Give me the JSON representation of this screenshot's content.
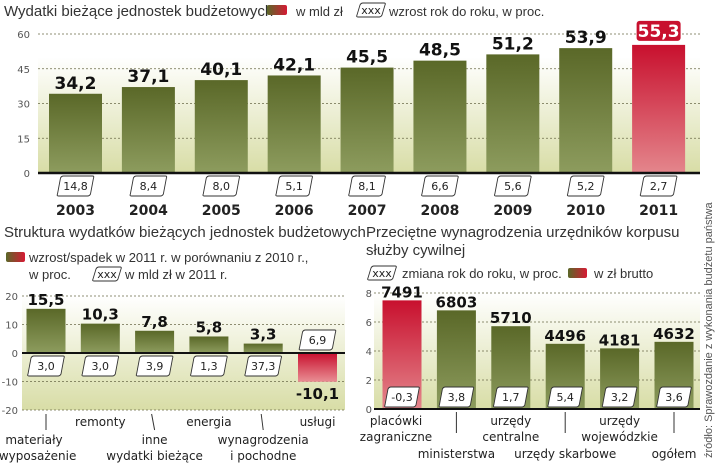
{
  "colors": {
    "bar_green_top": "#5c6b2a",
    "bar_green_bottom": "#8a9a5a",
    "bar_red_top": "#c8102e",
    "bar_red_bottom": "#e58a8f",
    "plot_bg_top": "#ffffff",
    "plot_bg_bottom": "#dfe3b5",
    "grid": "#6b6b4a",
    "axis": "#111111"
  },
  "source": "źródło: Sprawozdanie z wykonania budżetu państwa",
  "chart_data": [
    {
      "id": "top",
      "type": "bar",
      "title": "Wydatki bieżące jednostek budżetowych",
      "legend": [
        {
          "kind": "swatch",
          "label": "w mld zł"
        },
        {
          "kind": "box",
          "box_text": "xxx",
          "label": "wzrost rok do roku, w proc."
        }
      ],
      "categories": [
        "2003",
        "2004",
        "2005",
        "2006",
        "2007",
        "2008",
        "2009",
        "2010",
        "2011"
      ],
      "values": [
        34.2,
        37.1,
        40.1,
        42.1,
        45.5,
        48.5,
        51.2,
        53.9,
        55.3
      ],
      "value_labels": [
        "34,2",
        "37,1",
        "40,1",
        "42,1",
        "45,5",
        "48,5",
        "51,2",
        "53,9",
        "55,3"
      ],
      "growth_labels": [
        "14,8",
        "8,4",
        "8,0",
        "5,1",
        "8,1",
        "6,6",
        "5,6",
        "5,2",
        "2,7"
      ],
      "highlight": [
        false,
        false,
        false,
        false,
        false,
        false,
        false,
        false,
        true
      ],
      "yticks": [
        0,
        15,
        30,
        45,
        60
      ],
      "ylim": [
        0,
        60
      ],
      "grid": true,
      "xlabel": "",
      "ylabel": ""
    },
    {
      "id": "bottom-left",
      "type": "bar",
      "title": "Struktura wydatków bieżących jednostek budżetowych",
      "legend": [
        {
          "kind": "swatch",
          "label": "wzrost/spadek w 2011 r. w porównaniu z 2010 r.,"
        },
        {
          "kind": "text",
          "label": "w proc."
        },
        {
          "kind": "box",
          "box_text": "xxx",
          "label": "w mld zł w 2011 r."
        }
      ],
      "categories": [
        "materiały i wyposażenie",
        "remonty",
        "inne wydatki bieżące",
        "energia",
        "wynagrodzenia i pochodne",
        "usługi"
      ],
      "category_lines": [
        [
          "materiały",
          "i wyposażenie"
        ],
        [
          "remonty"
        ],
        [
          "inne",
          "wydatki bieżące"
        ],
        [
          "energia"
        ],
        [
          "wynagrodzenia",
          "i pochodne"
        ],
        [
          "usługi"
        ]
      ],
      "values": [
        15.5,
        10.3,
        7.8,
        5.8,
        3.3,
        -10.1
      ],
      "value_labels": [
        "15,5",
        "10,3",
        "7,8",
        "5,8",
        "3,3",
        "-10,1"
      ],
      "box_labels": [
        "3,0",
        "3,0",
        "3,9",
        "1,3",
        "37,3",
        "6,9"
      ],
      "highlight": [
        false,
        false,
        false,
        false,
        false,
        true
      ],
      "yticks": [
        -20,
        -10,
        0,
        10,
        20
      ],
      "ylim": [
        -20,
        20
      ],
      "grid": true,
      "xlabel": "",
      "ylabel": ""
    },
    {
      "id": "bottom-right",
      "type": "bar",
      "title_lines": [
        "Przeciętne wynagrodzenia urzędników korpusu",
        "służby cywilnej"
      ],
      "title": "Przeciętne wynagrodzenia urzędników korpusu służby cywilnej",
      "legend": [
        {
          "kind": "box",
          "box_text": "xxx",
          "label": "zmiana rok do roku, w proc."
        },
        {
          "kind": "swatch",
          "label": "w zł brutto"
        }
      ],
      "categories": [
        "placówki zagraniczne",
        "ministerstwa",
        "urzędy centralne",
        "urzędy skarbowe",
        "urzędy wojewódzkie",
        "ogółem"
      ],
      "category_lines": [
        [
          "placówki",
          "zagraniczne"
        ],
        [
          "ministerstwa"
        ],
        [
          "urzędy",
          "centralne"
        ],
        [
          "urzędy skarbowe"
        ],
        [
          "urzędy",
          "wojewódzkie"
        ],
        [
          "ogółem"
        ]
      ],
      "values": [
        7491,
        6803,
        5710,
        4496,
        4181,
        4632
      ],
      "value_labels": [
        "7491",
        "6803",
        "5710",
        "4496",
        "4181",
        "4632"
      ],
      "box_labels": [
        "-0,3",
        "3,8",
        "1,7",
        "5,4",
        "3,2",
        "3,6"
      ],
      "highlight": [
        true,
        false,
        false,
        false,
        false,
        false
      ],
      "yticks": [
        0,
        2,
        4,
        6,
        8
      ],
      "yticks_unit": "thousands zł",
      "ylim": [
        0,
        8000
      ],
      "grid": true,
      "xlabel": "",
      "ylabel": ""
    }
  ]
}
